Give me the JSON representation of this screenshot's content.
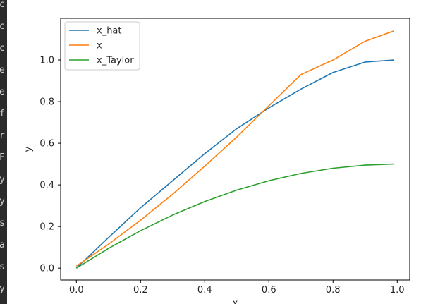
{
  "side_strip": {
    "glyphs": [
      "c",
      "c",
      "c",
      "e",
      "e",
      "f",
      "r",
      "F",
      "y",
      "y",
      "s",
      "a",
      "s",
      "y"
    ]
  },
  "chart_data": {
    "type": "line",
    "xlabel": "x",
    "ylabel": "y",
    "xlim": [
      -0.049,
      1.039
    ],
    "ylim": [
      -0.057,
      1.2
    ],
    "xticks": [
      0.0,
      0.2,
      0.4,
      0.6,
      0.8,
      1.0
    ],
    "xtick_labels": [
      "0.0",
      "0.2",
      "0.4",
      "0.6",
      "0.8",
      "1.0"
    ],
    "yticks": [
      0.0,
      0.2,
      0.4,
      0.6,
      0.8,
      1.0
    ],
    "ytick_labels": [
      "0.0",
      "0.2",
      "0.4",
      "0.6",
      "0.8",
      "1.0"
    ],
    "grid": false,
    "legend_position": "top-left",
    "x": [
      0.0,
      0.1,
      0.2,
      0.3,
      0.4,
      0.5,
      0.6,
      0.7,
      0.8,
      0.9,
      0.99
    ],
    "series": [
      {
        "name": "x_hat",
        "color": "#1f77b4",
        "values": [
          0.0,
          0.147,
          0.29,
          0.42,
          0.55,
          0.67,
          0.77,
          0.86,
          0.94,
          0.99,
          1.0
        ]
      },
      {
        "name": "x",
        "color": "#ff7f0e",
        "values": [
          0.01,
          0.115,
          0.23,
          0.355,
          0.49,
          0.63,
          0.78,
          0.93,
          1.0,
          1.09,
          1.14
        ]
      },
      {
        "name": "x_Taylor",
        "color": "#2ca02c",
        "values": [
          0.0,
          0.095,
          0.18,
          0.255,
          0.32,
          0.375,
          0.42,
          0.455,
          0.48,
          0.495,
          0.5
        ]
      }
    ]
  }
}
